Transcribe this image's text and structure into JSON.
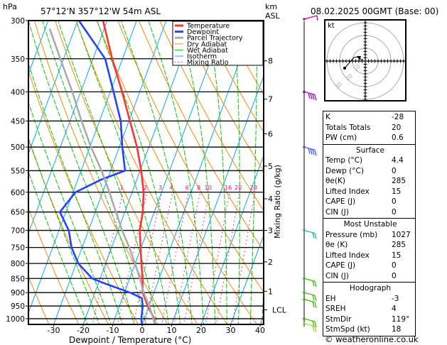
{
  "header": {
    "hpa_label": "hPa",
    "location": "57°12'N  357°12'W  54m  ASL",
    "km_label": "km",
    "asl_label": "ASL",
    "datetime": "08.02.2025 00GMT (Base: 00)"
  },
  "legend": [
    {
      "label": "Temperature",
      "color": "#ff3333"
    },
    {
      "label": "Dewpoint",
      "color": "#2244ff"
    },
    {
      "label": "Parcel Trajectory",
      "color": "#aaaaaa"
    },
    {
      "label": "Dry Adiabat",
      "color": "#ff8800"
    },
    {
      "label": "Wet Adiabat",
      "color": "#00cc00"
    },
    {
      "label": "Isotherm",
      "color": "#00aaff"
    },
    {
      "label": "Mixing Ratio",
      "color": "#ff0099"
    }
  ],
  "chart_data": {
    "type": "line",
    "title": "57°12'N  357°12'W  54m  ASL",
    "xlabel": "Dewpoint / Temperature (°C)",
    "ylabel": "hPa",
    "y2label": "Mixing Ratio (g/kg)",
    "xlim": [
      -39,
      41
    ],
    "ylim": [
      1025,
      300
    ],
    "x_ticks": [
      "-30",
      "-20",
      "-10",
      "0",
      "10",
      "20",
      "30",
      "40"
    ],
    "x_tick_values": [
      -30,
      -20,
      -10,
      0,
      10,
      20,
      30,
      40
    ],
    "pressure_levels": [
      "300",
      "350",
      "400",
      "450",
      "500",
      "550",
      "600",
      "650",
      "700",
      "750",
      "800",
      "850",
      "900",
      "950",
      "1000"
    ],
    "km_ticks": [
      {
        "label": "8",
        "p": 353
      },
      {
        "label": "7",
        "p": 412
      },
      {
        "label": "6",
        "p": 474
      },
      {
        "label": "5",
        "p": 540
      },
      {
        "label": "4",
        "p": 616
      },
      {
        "label": "3",
        "p": 700
      },
      {
        "label": "2",
        "p": 795
      },
      {
        "label": "1",
        "p": 895
      },
      {
        "label": "LCL",
        "p": 965
      }
    ],
    "mixing_ratio_labels": [
      "1",
      "2",
      "3",
      "4",
      "6",
      "8",
      "10",
      "16",
      "20",
      "28"
    ],
    "series": [
      {
        "name": "Temperature",
        "color": "#ff3333",
        "p": [
          1025,
          1000,
          950,
          900,
          850,
          800,
          750,
          700,
          650,
          600,
          550,
          500,
          450,
          400,
          350,
          300
        ],
        "t": [
          4.4,
          3.4,
          -0.4,
          -3.8,
          -5.6,
          -7.9,
          -10.2,
          -12.6,
          -13.9,
          -16.1,
          -19.6,
          -24.0,
          -29.7,
          -36.0,
          -43.5,
          -51.4
        ]
      },
      {
        "name": "Dewpoint",
        "color": "#2244ff",
        "p": [
          1025,
          1000,
          950,
          920,
          900,
          870,
          850,
          800,
          750,
          700,
          650,
          600,
          570,
          550,
          500,
          450,
          400,
          350,
          300
        ],
        "t": [
          0,
          -1.0,
          -2.1,
          -3.4,
          -8.1,
          -17,
          -22.7,
          -29.3,
          -33.6,
          -36.7,
          -42.0,
          -39.2,
          -32,
          -25.1,
          -29.0,
          -32.8,
          -38.9,
          -45.9,
          -59.6
        ]
      },
      {
        "name": "Parcel Trajectory",
        "color": "#aaaaaa",
        "p": [
          1025,
          1000,
          950,
          900,
          850,
          800,
          750,
          700,
          650,
          600,
          550,
          500,
          450,
          400,
          350,
          310
        ],
        "t": [
          4.4,
          3.1,
          0.1,
          -3.5,
          -6.5,
          -10.1,
          -14.0,
          -18.6,
          -23.0,
          -27.7,
          -33.1,
          -39.6,
          -46.1,
          -52.9,
          -61.1,
          -68.5
        ]
      }
    ]
  },
  "indices": {
    "rows": [
      {
        "label": "K",
        "value": "-28"
      },
      {
        "label": "Totals Totals",
        "value": "20"
      },
      {
        "label": "PW (cm)",
        "value": "0.6"
      }
    ]
  },
  "surface": {
    "title": "Surface",
    "rows": [
      {
        "label": "Temp (°C)",
        "value": "4.4"
      },
      {
        "label": "Dewp (°C)",
        "value": "0"
      },
      {
        "label": "θe(K)",
        "value": "285"
      },
      {
        "label": "Lifted Index",
        "value": "15"
      },
      {
        "label": "CAPE (J)",
        "value": "0"
      },
      {
        "label": "CIN (J)",
        "value": "0"
      }
    ]
  },
  "most_unstable": {
    "title": "Most Unstable",
    "rows": [
      {
        "label": "Pressure (mb)",
        "value": "1027"
      },
      {
        "label": "θe (K)",
        "value": "285"
      },
      {
        "label": "Lifted Index",
        "value": "15"
      },
      {
        "label": "CAPE (J)",
        "value": "0"
      },
      {
        "label": "CIN (J)",
        "value": "0"
      }
    ]
  },
  "hodograph": {
    "title": "Hodograph",
    "unit_label": "kt",
    "ring_labels": [
      "10",
      "20",
      "30"
    ],
    "rows": [
      {
        "label": "EH",
        "value": "-3"
      },
      {
        "label": "SREH",
        "value": "4"
      },
      {
        "label": "StmDir",
        "value": "119°"
      },
      {
        "label": "StmSpd (kt)",
        "value": "18"
      }
    ]
  },
  "footer": {
    "copyright": "© weatheronline.co.uk"
  }
}
